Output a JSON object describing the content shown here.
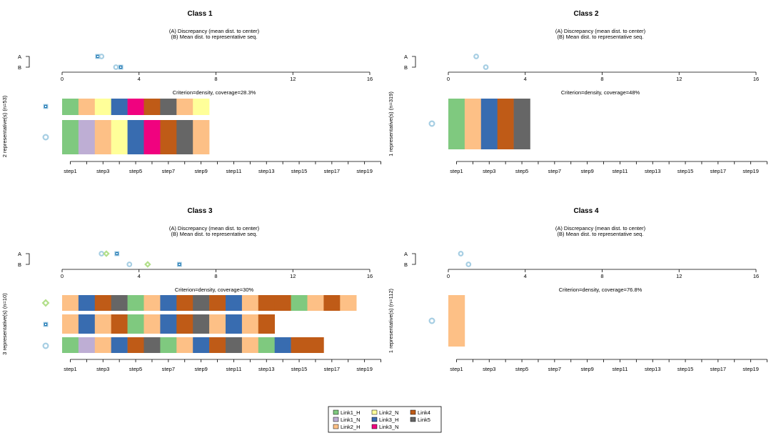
{
  "legend": {
    "items": [
      {
        "label": "Link1_H",
        "color": "#7fc97f"
      },
      {
        "label": "Link1_N",
        "color": "#beaed4"
      },
      {
        "label": "Link2_H",
        "color": "#fdc086"
      },
      {
        "label": "Link2_N",
        "color": "#ffff99"
      },
      {
        "label": "Link3_H",
        "color": "#386cb0"
      },
      {
        "label": "Link3_N",
        "color": "#f0027f"
      },
      {
        "label": "Link4",
        "color": "#bf5b17"
      },
      {
        "label": "Link5",
        "color": "#666666"
      }
    ]
  },
  "chart_data": [
    {
      "type": "representative-sequence-plot",
      "title": "Class 1",
      "note_a": "(A) Discrepancy (mean dist. to center)",
      "note_b": "(B) Mean dist. to representative seq.",
      "ylabel": "2 representative(s) (n=53)",
      "criterion": "Criterion=density, coverage=28.3%",
      "dist_axis": {
        "ticks": [
          0,
          4,
          8,
          12,
          16
        ],
        "range": [
          0,
          16
        ]
      },
      "x_ticks": [
        "step1",
        "step3",
        "step5",
        "step7",
        "step9",
        "step11",
        "step13",
        "step15",
        "step17",
        "step19"
      ],
      "row_labels": [
        "A",
        "B"
      ],
      "discrepancy": {
        "value": 2.05,
        "marker": "circle"
      },
      "reps": [
        {
          "marker": "square",
          "mean_dist": 3.05,
          "seq": [
            "Link1_H",
            "Link2_H",
            "Link2_N",
            "Link3_H",
            "Link3_N",
            "Link4",
            "Link5",
            "Link2_H",
            "Link2_N"
          ]
        },
        {
          "marker": "circle",
          "mean_dist": 2.8,
          "seq": [
            "Link1_H",
            "Link1_N",
            "Link2_H",
            "Link2_N",
            "Link3_H",
            "Link3_N",
            "Link4",
            "Link5",
            "Link2_H"
          ]
        }
      ],
      "discrepancy_points": [
        {
          "marker": "square",
          "value": 1.85
        },
        {
          "marker": "circle",
          "value": 2.05
        }
      ],
      "meandist_points": [
        {
          "marker": "circle",
          "value": 2.8
        },
        {
          "marker": "square",
          "value": 3.05
        }
      ]
    },
    {
      "type": "representative-sequence-plot",
      "title": "Class 2",
      "note_a": "(A) Discrepancy (mean dist. to center)",
      "note_b": "(B) Mean dist. to representative seq.",
      "ylabel": "1 representative(s) (n=319)",
      "criterion": "Criterion=density, coverage=48%",
      "dist_axis": {
        "ticks": [
          0,
          4,
          8,
          12,
          16
        ],
        "range": [
          0,
          16
        ]
      },
      "x_ticks": [
        "step1",
        "step3",
        "step5",
        "step7",
        "step9",
        "step11",
        "step13",
        "step15",
        "step17",
        "step19"
      ],
      "row_labels": [
        "A",
        "B"
      ],
      "reps": [
        {
          "marker": "circle",
          "seq": [
            "Link1_H",
            "Link2_H",
            "Link3_H",
            "Link4",
            "Link5"
          ]
        }
      ],
      "discrepancy_points": [
        {
          "marker": "circle",
          "value": 1.45
        }
      ],
      "meandist_points": [
        {
          "marker": "circle",
          "value": 1.95
        }
      ]
    },
    {
      "type": "representative-sequence-plot",
      "title": "Class 3",
      "note_a": "(A) Discrepancy (mean dist. to center)",
      "note_b": "(B) Mean dist. to representative seq.",
      "ylabel": "3 representative(s) (n=10)",
      "criterion": "Criterion=density, coverage=30%",
      "dist_axis": {
        "ticks": [
          0,
          4,
          8,
          12,
          16
        ],
        "range": [
          0,
          16
        ]
      },
      "x_ticks": [
        "step1",
        "step3",
        "step5",
        "step7",
        "step9",
        "step11",
        "step13",
        "step15",
        "step17",
        "step19"
      ],
      "row_labels": [
        "A",
        "B"
      ],
      "reps": [
        {
          "marker": "diamond",
          "seq": [
            "Link2_H",
            "Link3_H",
            "Link4",
            "Link5",
            "Link1_H",
            "Link2_H",
            "Link3_H",
            "Link4",
            "Link5",
            "Link4",
            "Link3_H",
            "Link2_H",
            "Link4",
            "Link4",
            "Link1_H",
            "Link2_H",
            "Link4",
            "Link2_H"
          ]
        },
        {
          "marker": "square",
          "seq": [
            "Link2_H",
            "Link3_H",
            "Link2_H",
            "Link4",
            "Link1_H",
            "Link2_H",
            "Link3_H",
            "Link4",
            "Link5",
            "Link2_H",
            "Link3_H",
            "Link2_H",
            "Link4"
          ]
        },
        {
          "marker": "circle",
          "seq": [
            "Link1_H",
            "Link1_N",
            "Link2_H",
            "Link3_H",
            "Link4",
            "Link5",
            "Link1_H",
            "Link2_H",
            "Link3_H",
            "Link4",
            "Link5",
            "Link2_H",
            "Link1_H",
            "Link3_H",
            "Link4",
            "Link4"
          ]
        }
      ],
      "discrepancy_points": [
        {
          "marker": "circle",
          "value": 2.05
        },
        {
          "marker": "diamond",
          "value": 2.3
        },
        {
          "marker": "square",
          "value": 2.85
        }
      ],
      "meandist_points": [
        {
          "marker": "circle",
          "value": 3.5
        },
        {
          "marker": "diamond",
          "value": 4.45
        },
        {
          "marker": "square",
          "value": 6.1
        }
      ]
    },
    {
      "type": "representative-sequence-plot",
      "title": "Class 4",
      "note_a": "(A) Discrepancy (mean dist. to center)",
      "note_b": "(B) Mean dist. to representative seq.",
      "ylabel": "1 representative(s) (n=112)",
      "criterion": "Criterion=density, coverage=76.8%",
      "dist_axis": {
        "ticks": [
          0,
          4,
          8,
          12,
          16
        ],
        "range": [
          0,
          16
        ]
      },
      "x_ticks": [
        "step1",
        "step3",
        "step5",
        "step7",
        "step9",
        "step11",
        "step13",
        "step15",
        "step17",
        "step19"
      ],
      "row_labels": [
        "A",
        "B"
      ],
      "reps": [
        {
          "marker": "circle",
          "seq": [
            "Link2_H"
          ]
        }
      ],
      "discrepancy_points": [
        {
          "marker": "circle",
          "value": 0.65
        }
      ],
      "meandist_points": [
        {
          "marker": "circle",
          "value": 1.05
        }
      ]
    }
  ]
}
